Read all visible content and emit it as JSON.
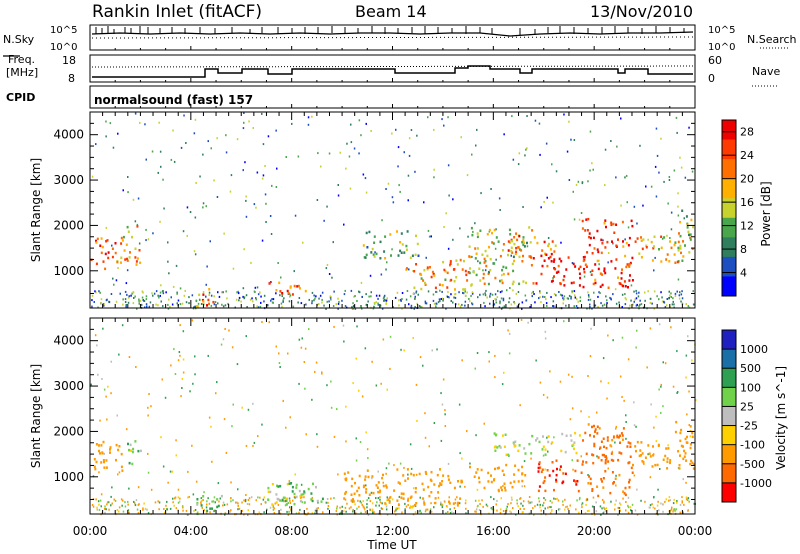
{
  "header": {
    "title": "Rankin Inlet (fitACF)",
    "beam": "Beam 14",
    "date": "13/Nov/2010"
  },
  "noise_panel": {
    "left_label": "N.Sky",
    "right_label": "N.Search",
    "tick_top": "10^5",
    "tick_bottom": "10^0"
  },
  "freq_panel": {
    "left_label_1": "Freq.",
    "left_label_2": "[MHz]",
    "right_label": "Nave",
    "left_ticks": [
      "18",
      "8"
    ],
    "right_ticks": [
      "60",
      "0"
    ]
  },
  "cpid_panel": {
    "label": "CPID",
    "text": "normalsound (fast) 157"
  },
  "colors": {
    "power": [
      "#0000ff",
      "#1e4fc0",
      "#2f7f5f",
      "#4aa64a",
      "#c8d22c",
      "#ffb000",
      "#ff7000",
      "#ff3a00",
      "#ee0000"
    ],
    "velocity": [
      "#ff0000",
      "#ff6a00",
      "#ff9b00",
      "#ffd000",
      "#bebebe",
      "#6fd24a",
      "#2fa052",
      "#1a6fa6",
      "#2020c0"
    ]
  },
  "chart_data": [
    {
      "type": "heatmap",
      "title": "",
      "xlabel": "",
      "ylabel": "Slant Range [km]",
      "x_ticks": [
        "00:00",
        "04:00",
        "08:00",
        "12:00",
        "16:00",
        "20:00",
        "00:00"
      ],
      "y_ticks": [
        1000,
        2000,
        3000,
        4000
      ],
      "ylim": [
        180,
        4500
      ],
      "xlim_hours": [
        0,
        24
      ],
      "colorbar": {
        "label": "Power [dB]",
        "ticks": [
          "4",
          "8",
          "12",
          "16",
          "20",
          "24",
          "28"
        ],
        "range": [
          0,
          30
        ]
      },
      "features": [
        {
          "t0": 0.0,
          "t1": 1.0,
          "r0": 1050,
          "r1": 1750,
          "level": 24
        },
        {
          "t0": 1.0,
          "t1": 2.0,
          "r0": 1150,
          "r1": 2050,
          "level": 18
        },
        {
          "t0": 4.2,
          "t1": 4.9,
          "r0": 180,
          "r1": 700,
          "level": 22
        },
        {
          "t0": 7.0,
          "t1": 8.6,
          "r0": 450,
          "r1": 800,
          "level": 24
        },
        {
          "t0": 10.8,
          "t1": 13.0,
          "r0": 1300,
          "r1": 1900,
          "level": 12
        },
        {
          "t0": 12.5,
          "t1": 15.0,
          "r0": 600,
          "r1": 1300,
          "level": 20
        },
        {
          "t0": 15.0,
          "t1": 17.5,
          "r0": 700,
          "r1": 2000,
          "level": 16
        },
        {
          "t0": 16.5,
          "t1": 18.5,
          "r0": 1300,
          "r1": 1800,
          "level": 22
        },
        {
          "t0": 17.5,
          "t1": 19.5,
          "r0": 700,
          "r1": 1400,
          "level": 28
        },
        {
          "t0": 19.5,
          "t1": 21.5,
          "r0": 600,
          "r1": 2200,
          "level": 26
        },
        {
          "t0": 21.5,
          "t1": 23.5,
          "r0": 1200,
          "r1": 1800,
          "level": 18
        },
        {
          "t0": 23.3,
          "t1": 24.0,
          "r0": 1200,
          "r1": 2400,
          "level": 14
        }
      ]
    },
    {
      "type": "heatmap",
      "title": "",
      "xlabel": "Time UT",
      "ylabel": "Slant Range [km]",
      "x_ticks": [
        "00:00",
        "04:00",
        "08:00",
        "12:00",
        "16:00",
        "20:00",
        "00:00"
      ],
      "y_ticks": [
        1000,
        2000,
        3000,
        4000
      ],
      "ylim": [
        180,
        4500
      ],
      "xlim_hours": [
        0,
        24
      ],
      "colorbar": {
        "label": "Velocity [m s^-1]",
        "ticks": [
          "-1000",
          "-500",
          "-100",
          "-25",
          "25",
          "100",
          "500",
          "1000"
        ],
        "range": [
          -1500,
          1500
        ]
      },
      "features": [
        {
          "t0": 0.0,
          "t1": 1.4,
          "r0": 1100,
          "r1": 1800,
          "level": -300
        },
        {
          "t0": 1.4,
          "t1": 2.0,
          "r0": 1300,
          "r1": 1950,
          "level": 50
        },
        {
          "t0": 4.2,
          "t1": 5.2,
          "r0": 180,
          "r1": 650,
          "level": 80
        },
        {
          "t0": 7.0,
          "t1": 8.5,
          "r0": 400,
          "r1": 900,
          "level": 0
        },
        {
          "t0": 7.4,
          "t1": 9.2,
          "r0": 400,
          "r1": 900,
          "level": 80
        },
        {
          "t0": 10.0,
          "t1": 14.8,
          "r0": 400,
          "r1": 1200,
          "level": -300
        },
        {
          "t0": 15.0,
          "t1": 17.3,
          "r0": 700,
          "r1": 1300,
          "level": -250
        },
        {
          "t0": 16.0,
          "t1": 19.5,
          "r0": 1500,
          "r1": 2000,
          "level": 0
        },
        {
          "t0": 17.6,
          "t1": 19.5,
          "r0": 700,
          "r1": 1400,
          "level": -900
        },
        {
          "t0": 19.5,
          "t1": 21.5,
          "r0": 600,
          "r1": 2200,
          "level": -700
        },
        {
          "t0": 21.5,
          "t1": 23.5,
          "r0": 1200,
          "r1": 1800,
          "level": -300
        },
        {
          "t0": 23.2,
          "t1": 24.0,
          "r0": 1200,
          "r1": 2400,
          "level": -200
        }
      ]
    }
  ]
}
